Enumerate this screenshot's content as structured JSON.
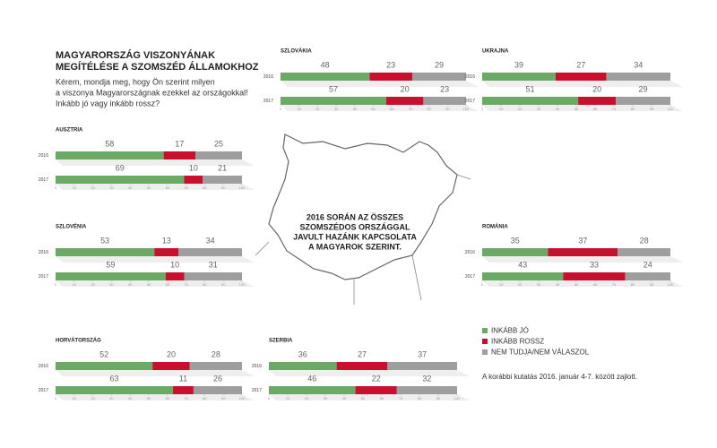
{
  "title": [
    "MAGYARORSZÁG VISZONYÁNAK",
    "MEGÍTÉLÉSE A SZOMSZÉD ÁLLAMOKHOZ"
  ],
  "subtitle": [
    "Kérem, mondja meg, hogy Ön szerint milyen",
    "a viszonya Magyarországnak ezekkel az országokkal!",
    "Inkább jó vagy inkább rossz?"
  ],
  "map_label": [
    "2016 SORÁN AZ ÖSSZES",
    "SZOMSZÉDOS ORSZÁGGAL",
    "JAVULT HAZÁNK KAPCSOLATA",
    "A MAGYAROK SZERINT."
  ],
  "legend": [
    {
      "name": "INKÁBB JÓ",
      "color": "#6aaa64"
    },
    {
      "name": "INKÁBB ROSSZ",
      "color": "#c8102e"
    },
    {
      "name": "NEM TUDJA/NEM VÁLASZOL",
      "color": "#9e9e9e"
    }
  ],
  "note": "A korábbi kutatás 2016. január 4-7. között zajlott.",
  "chart_data": [
    {
      "type": "bar",
      "title": "AUSZTRIA",
      "categories": [
        "2016",
        "2017"
      ],
      "series": [
        {
          "values": [
            58,
            69
          ]
        },
        {
          "values": [
            17,
            10
          ]
        },
        {
          "values": [
            25,
            21
          ]
        }
      ],
      "xlim": [
        0,
        100
      ],
      "xticks": [
        0,
        10,
        20,
        30,
        40,
        50,
        60,
        70,
        80,
        90,
        100
      ]
    },
    {
      "type": "bar",
      "title": "SZLOVÁKIA",
      "categories": [
        "2016",
        "2017"
      ],
      "series": [
        {
          "values": [
            48,
            57
          ]
        },
        {
          "values": [
            23,
            20
          ]
        },
        {
          "values": [
            29,
            23
          ]
        }
      ],
      "xlim": [
        0,
        100
      ],
      "xticks": [
        0,
        10,
        20,
        30,
        40,
        50,
        60,
        70,
        80,
        90,
        100
      ]
    },
    {
      "type": "bar",
      "title": "UKRAJNA",
      "categories": [
        "2016",
        "2017"
      ],
      "series": [
        {
          "values": [
            39,
            51
          ]
        },
        {
          "values": [
            27,
            20
          ]
        },
        {
          "values": [
            34,
            29
          ]
        }
      ],
      "xlim": [
        0,
        100
      ],
      "xticks": [
        0,
        10,
        20,
        30,
        40,
        50,
        60,
        70,
        80,
        90,
        100
      ]
    },
    {
      "type": "bar",
      "title": "SZLOVÉNIA",
      "categories": [
        "2016",
        "2017"
      ],
      "series": [
        {
          "values": [
            53,
            59
          ]
        },
        {
          "values": [
            13,
            10
          ]
        },
        {
          "values": [
            34,
            31
          ]
        }
      ],
      "xlim": [
        0,
        100
      ],
      "xticks": [
        0,
        10,
        20,
        30,
        40,
        50,
        60,
        70,
        80,
        90,
        100
      ]
    },
    {
      "type": "bar",
      "title": "ROMÁNIA",
      "categories": [
        "2016",
        "2017"
      ],
      "series": [
        {
          "values": [
            35,
            43
          ]
        },
        {
          "values": [
            37,
            33
          ]
        },
        {
          "values": [
            28,
            24
          ]
        }
      ],
      "xlim": [
        0,
        100
      ],
      "xticks": [
        0,
        10,
        20,
        30,
        40,
        50,
        60,
        70,
        80,
        90,
        100
      ]
    },
    {
      "type": "bar",
      "title": "HORVÁTORSZÁG",
      "categories": [
        "2016",
        "2017"
      ],
      "series": [
        {
          "values": [
            52,
            63
          ]
        },
        {
          "values": [
            20,
            11
          ]
        },
        {
          "values": [
            28,
            26
          ]
        }
      ],
      "xlim": [
        0,
        100
      ],
      "xticks": [
        0,
        10,
        20,
        30,
        40,
        50,
        60,
        70,
        80,
        90,
        100
      ]
    },
    {
      "type": "bar",
      "title": "SZERBIA",
      "categories": [
        "2016",
        "2017"
      ],
      "series": [
        {
          "values": [
            36,
            46
          ]
        },
        {
          "values": [
            27,
            22
          ]
        },
        {
          "values": [
            37,
            32
          ]
        }
      ],
      "xlim": [
        0,
        100
      ],
      "xticks": [
        0,
        10,
        20,
        30,
        40,
        50,
        60,
        70,
        80,
        90,
        100
      ]
    }
  ]
}
